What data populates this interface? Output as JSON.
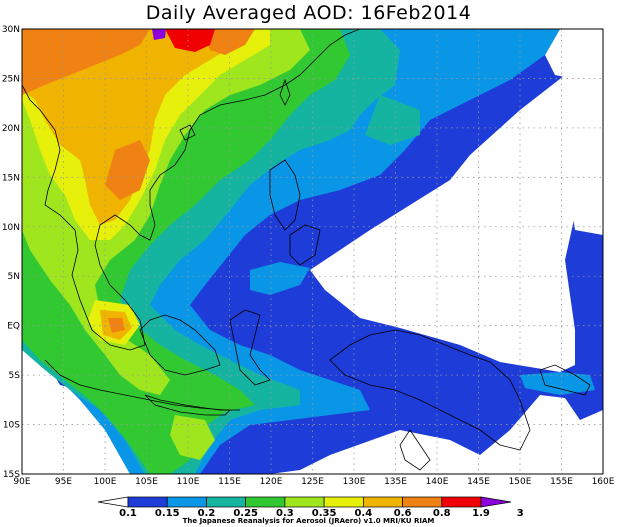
{
  "title": "Daily Averaged AOD: 16Feb2014",
  "map": {
    "lon_ticks": [
      "90E",
      "95E",
      "100E",
      "105E",
      "110E",
      "115E",
      "120E",
      "125E",
      "130E",
      "135E",
      "140E",
      "145E",
      "150E",
      "155E",
      "160E"
    ],
    "lat_ticks": [
      "30N",
      "25N",
      "20N",
      "15N",
      "10N",
      "5N",
      "EQ",
      "5S",
      "10S",
      "15S"
    ],
    "lon_range": [
      90,
      160
    ],
    "lat_range": [
      -15,
      30
    ],
    "grid": true
  },
  "colorbar": {
    "labels": [
      "0.1",
      "0.15",
      "0.2",
      "0.25",
      "0.3",
      "0.35",
      "0.4",
      "0.6",
      "0.8",
      "1.9",
      "3"
    ],
    "colors": [
      "#ffffff",
      "#1e3cd8",
      "#0a96e6",
      "#14b4a0",
      "#32c832",
      "#a0e61e",
      "#e6f00a",
      "#f0b400",
      "#f08214",
      "#f00000",
      "#8c00dc"
    ]
  },
  "credit": "The Japanese Reanalysis for Aerosol (JRAero) v1.0 MRI/KU RIAM"
}
